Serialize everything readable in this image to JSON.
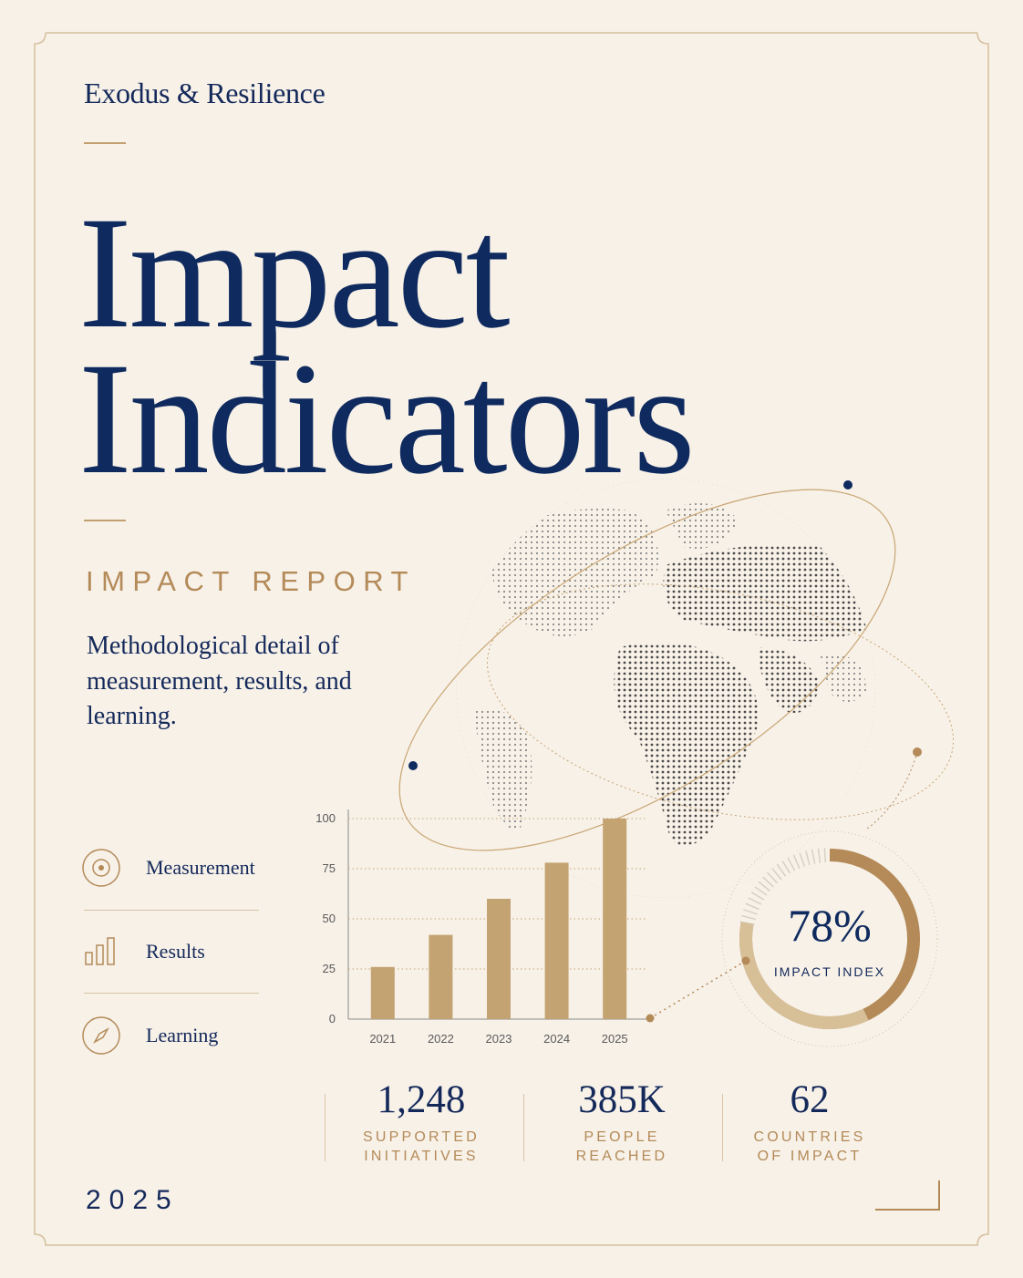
{
  "brand": "Exodus & Resilience",
  "title_line1": "Impact",
  "title_line2": "Indicators",
  "kicker": "IMPACT REPORT",
  "subtitle": "Methodological detail of measurement, results, and learning.",
  "nav": [
    {
      "label": "Measurement",
      "icon": "target-icon"
    },
    {
      "label": "Results",
      "icon": "bar-chart-icon"
    },
    {
      "label": "Learning",
      "icon": "compass-icon"
    }
  ],
  "stats": [
    {
      "number": "1,248",
      "label_line1": "SUPPORTED",
      "label_line2": "INITIATIVES"
    },
    {
      "number": "385K",
      "label_line1": "PEOPLE",
      "label_line2": "REACHED"
    },
    {
      "number": "62",
      "label_line1": "COUNTRIES",
      "label_line2": "OF IMPACT"
    }
  ],
  "impact_index": {
    "value_label": "78%",
    "label": "IMPACT INDEX",
    "fraction": 0.78
  },
  "year": "2025",
  "colors": {
    "navy": "#0f2a5e",
    "gold": "#b48a58",
    "bar": "#c3a371",
    "background": "#f7f1e8"
  },
  "chart_data": {
    "type": "bar",
    "categories": [
      "2021",
      "2022",
      "2023",
      "2024",
      "2025"
    ],
    "values": [
      26,
      42,
      60,
      78,
      100
    ],
    "ylim": [
      0,
      100
    ],
    "yticks": [
      0,
      25,
      50,
      75,
      100
    ],
    "grid": true
  }
}
